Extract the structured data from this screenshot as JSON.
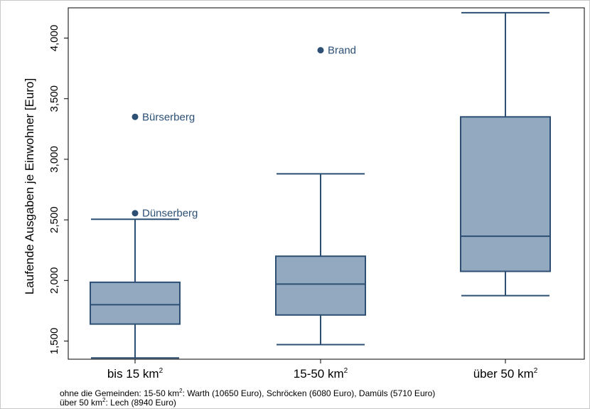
{
  "chart_data": {
    "type": "box",
    "ylabel": "Laufende Ausgaben je Einwohner [Euro]",
    "ylim": [
      1350,
      4250
    ],
    "y_ticks": [
      1500,
      2000,
      2500,
      3000,
      3500,
      4000
    ],
    "y_tick_labels": [
      "1,500",
      "2,000",
      "2,500",
      "3,000",
      "3,500",
      "4,000"
    ],
    "grid": false,
    "categories": [
      {
        "name": "bis 15 km",
        "sup": "2"
      },
      {
        "name": "15-50 km",
        "sup": "2"
      },
      {
        "name": "über 50 km",
        "sup": "2"
      }
    ],
    "boxes": [
      {
        "whisker_low": 1360,
        "q1": 1640,
        "median": 1800,
        "q3": 1985,
        "whisker_high": 2505,
        "outliers": [
          {
            "label": "Bürserberg",
            "value": 3350
          },
          {
            "label": "Dünserberg",
            "value": 2555
          }
        ]
      },
      {
        "whisker_low": 1470,
        "q1": 1715,
        "median": 1970,
        "q3": 2200,
        "whisker_high": 2880,
        "outliers": [
          {
            "label": "Brand",
            "value": 3900
          }
        ]
      },
      {
        "whisker_low": 1875,
        "q1": 2075,
        "median": 2365,
        "q3": 3350,
        "whisker_high": 4210,
        "outliers": []
      }
    ],
    "box_fill": "#93a9c0",
    "box_stroke": "#2c4f73",
    "note_line1": {
      "pre": "ohne die Gemeinden: 15-50 km",
      "sup": "2",
      "post": ": Warth (10650 Euro), Schröcken (6080 Euro), Damüls (5710 Euro)"
    },
    "note_line2": {
      "pre": "über 50 km",
      "sup": "2",
      "post": ": Lech (8940 Euro)"
    }
  }
}
